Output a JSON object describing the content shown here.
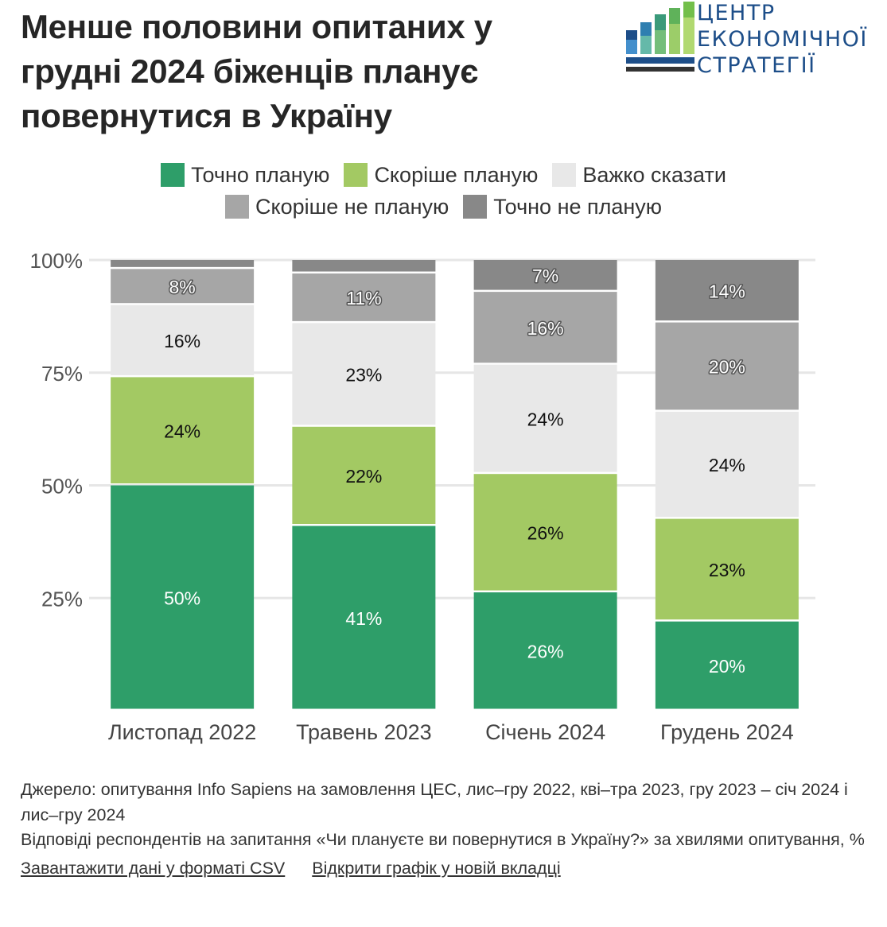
{
  "title": {
    "line1": "Менше половини опитаних у",
    "line2": "грудні 2024 біженців планує",
    "line3": "повернутися в Україну"
  },
  "logo": {
    "line1": "ЦЕНТР",
    "line2": "ЕКОНОМІЧНОЇ",
    "line3": "СТРАТЕГІЇ",
    "icon": "bar-logo-icon"
  },
  "colors": {
    "definitely_plan": "#2e9e69",
    "rather_plan": "#a3c963",
    "hard_to_say": "#e8e8e8",
    "rather_not_plan": "#a6a6a6",
    "definitely_not_plan": "#888888",
    "gridline": "#e6e6e6"
  },
  "chart_data": {
    "type": "bar",
    "stacked": true,
    "categories": [
      "Листопад 2022",
      "Травень 2023",
      "Січень 2024",
      "Грудень 2024"
    ],
    "series": [
      {
        "name": "Точно планую",
        "values": [
          50,
          41,
          26,
          20
        ],
        "labels": [
          "50%",
          "41%",
          "26%",
          "20%"
        ]
      },
      {
        "name": "Скоріше планую",
        "values": [
          24,
          22,
          26,
          23
        ],
        "labels": [
          "24%",
          "22%",
          "26%",
          "23%"
        ]
      },
      {
        "name": "Важко сказати",
        "values": [
          16,
          23,
          24,
          24
        ],
        "labels": [
          "16%",
          "23%",
          "24%",
          "24%"
        ]
      },
      {
        "name": "Скоріше не планую",
        "values": [
          8,
          11,
          16,
          20
        ],
        "labels": [
          "8%",
          "11%",
          "16%",
          "20%"
        ]
      },
      {
        "name": "Точно не планую",
        "values": [
          2,
          3,
          7,
          14
        ],
        "labels": [
          "",
          "",
          "7%",
          "14%"
        ]
      }
    ],
    "ylim": [
      0,
      100
    ],
    "yticks": [
      25,
      50,
      75,
      100
    ],
    "ytick_labels": [
      "25%",
      "50%",
      "75%",
      "100%"
    ],
    "grid": true,
    "legend_position": "top"
  },
  "footer": {
    "source": "Джерело: опитування Info Sapiens на замовлення ЦЕС, лис–гру 2022, кві–тра 2023, гру 2023 – січ 2024 і лис–гру 2024",
    "note": "Відповіді респондентів на запитання «Чи плануєте ви повернутися в Україну?» за хвилями опитування, %",
    "csv_link": "Завантажити дані у форматі CSV",
    "open_link": "Відкрити графік у новій вкладці"
  }
}
